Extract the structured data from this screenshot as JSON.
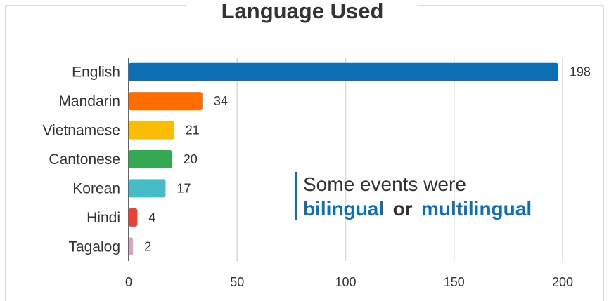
{
  "colors": {
    "text": "#333333",
    "grid": "#d9d9d9",
    "axis": "#333333",
    "frame": "#cccccc",
    "accent": "#0d6eb3"
  },
  "chart_data": {
    "type": "bar",
    "orientation": "horizontal",
    "title": "Language Used",
    "categories": [
      "English",
      "Mandarin",
      "Vietnamese",
      "Cantonese",
      "Korean",
      "Hindi",
      "Tagalog"
    ],
    "values": [
      198,
      34,
      21,
      20,
      17,
      4,
      2
    ],
    "bar_colors": [
      "#0d6eb3",
      "#ff6d01",
      "#fbbc04",
      "#34a853",
      "#46bdc6",
      "#ea4335",
      "#d5a6bd"
    ],
    "xlim": [
      0,
      200
    ],
    "xticks": [
      0,
      50,
      100,
      150,
      200
    ],
    "grid": true,
    "annotation": {
      "line1": "Some events were",
      "line2_word1": "bilingual",
      "line2_connector": "or",
      "line2_word2": "multilingual"
    }
  }
}
